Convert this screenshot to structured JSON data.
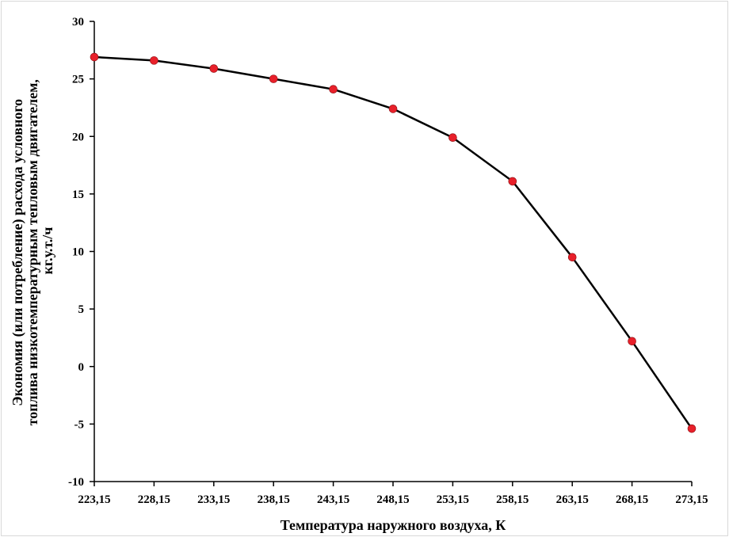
{
  "chart_data": {
    "type": "line",
    "xlabel": "Температура наружного воздуха, К",
    "ylabel_lines": [
      "Экономия (или потребление) расхода условного",
      "топлива  низкотемпературным тепловым двигателем,",
      "кг.у.т./ч"
    ],
    "x_tick_labels": [
      "223,15",
      "228,15",
      "233,15",
      "238,15",
      "243,15",
      "248,15",
      "253,15",
      "258,15",
      "263,15",
      "268,15",
      "273,15"
    ],
    "x": [
      223.15,
      228.15,
      233.15,
      238.15,
      243.15,
      248.15,
      253.15,
      258.15,
      263.15,
      268.15,
      273.15
    ],
    "y_ticks": [
      30,
      25,
      20,
      15,
      10,
      5,
      0,
      -5,
      -10
    ],
    "ylim": [
      -10,
      30
    ],
    "series": [
      {
        "values": [
          26.9,
          26.6,
          25.9,
          25.0,
          24.1,
          22.4,
          19.9,
          16.1,
          9.5,
          2.2,
          -5.4
        ],
        "line_color": "#000000",
        "marker_color": "#e8202a"
      }
    ],
    "grid": false,
    "legend": "none"
  }
}
